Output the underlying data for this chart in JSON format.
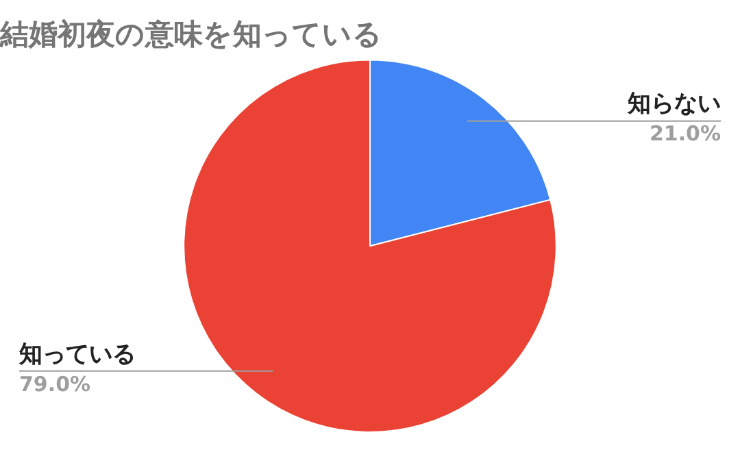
{
  "chart_data": {
    "type": "pie",
    "title": "結婚初夜の意味を知っている",
    "categories": [
      "知らない",
      "知っている"
    ],
    "values": [
      21.0,
      79.0
    ],
    "colors": [
      "#4285f4",
      "#ea4335"
    ],
    "value_labels": [
      "21.0%",
      "79.0%"
    ],
    "legend": false
  }
}
